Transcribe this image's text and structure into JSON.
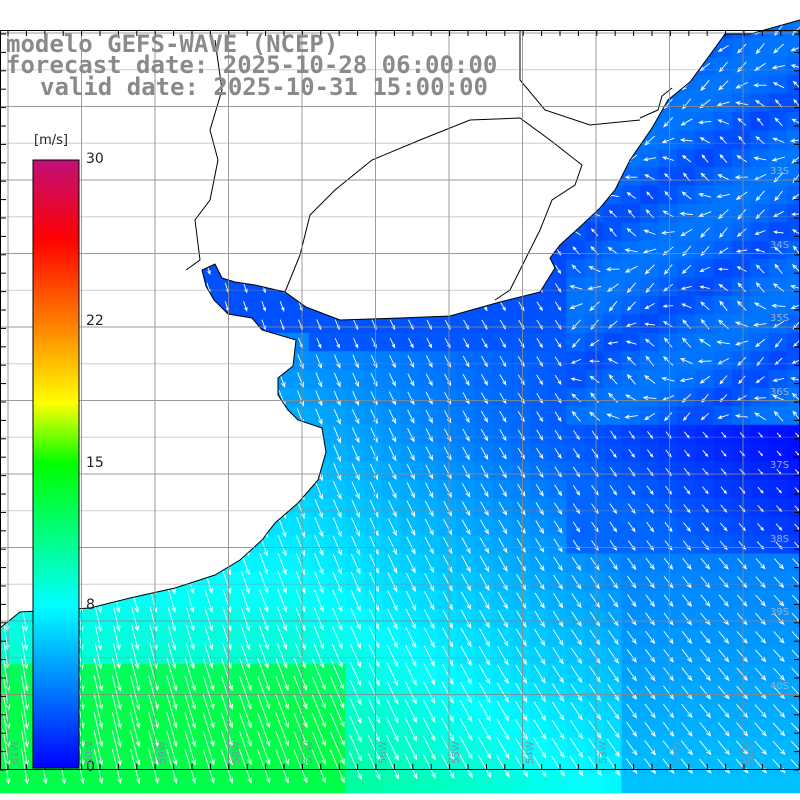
{
  "title": {
    "line1": "modelo GEFS-WAVE (NCEP)",
    "line2": "forecast date: 2025-10-28 06:00:00",
    "line3": "valid date: 2025-10-31 15:00:00"
  },
  "colorbar": {
    "unit": "[m/s]",
    "ticks": [
      {
        "value": 30,
        "label": "30"
      },
      {
        "value": 22,
        "label": "22"
      },
      {
        "value": 15,
        "label": "15"
      },
      {
        "value": 8,
        "label": "8"
      },
      {
        "value": 0,
        "label": "0"
      }
    ]
  },
  "lat_labels": [
    {
      "lat": -33,
      "label": "33S"
    },
    {
      "lat": -34,
      "label": "34S"
    },
    {
      "lat": -35,
      "label": "35S"
    },
    {
      "lat": -36,
      "label": "36S"
    },
    {
      "lat": -37,
      "label": "37S"
    },
    {
      "lat": -38,
      "label": "38S"
    },
    {
      "lat": -39,
      "label": "39S"
    },
    {
      "lat": -40,
      "label": "40S"
    }
  ],
  "lon_labels": [
    {
      "lon": -61,
      "label": "61W"
    },
    {
      "lon": -60,
      "label": "60W"
    },
    {
      "lon": -59,
      "label": "59W"
    },
    {
      "lon": -58,
      "label": "58W"
    },
    {
      "lon": -57,
      "label": "57W"
    },
    {
      "lon": -56,
      "label": "56W"
    },
    {
      "lon": -55,
      "label": "55W"
    },
    {
      "lon": -54,
      "label": "54W"
    },
    {
      "lon": -53,
      "label": "53W"
    },
    {
      "lon": -52,
      "label": "52W"
    },
    {
      "lon": -51,
      "label": "51W"
    }
  ]
}
